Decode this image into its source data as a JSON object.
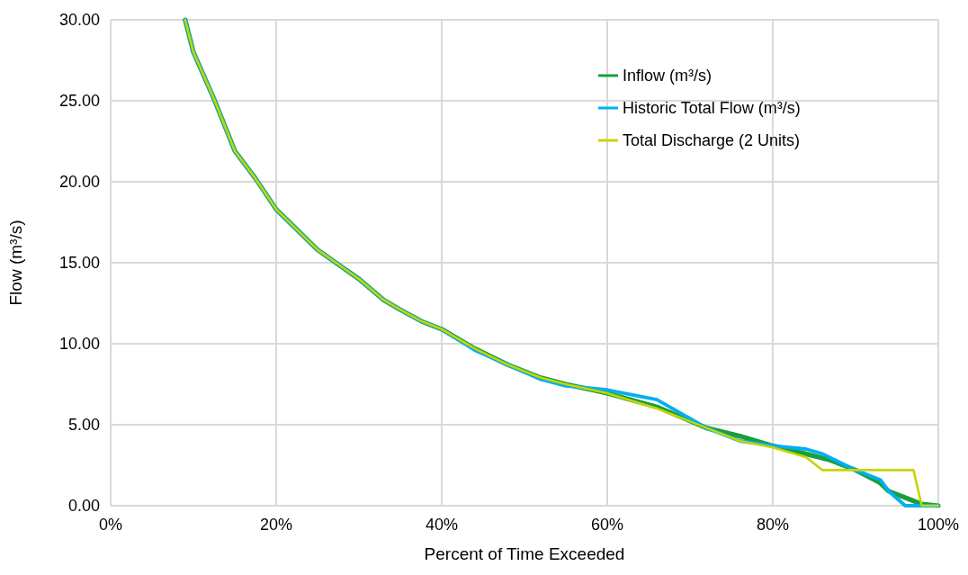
{
  "chart_data": {
    "type": "line",
    "xlabel": "Percent of Time Exceeded",
    "ylabel": "Flow (m³/s)",
    "xlim": [
      0,
      100
    ],
    "xticks": [
      {
        "value": 0,
        "label": "0%"
      },
      {
        "value": 20,
        "label": "20%"
      },
      {
        "value": 40,
        "label": "40%"
      },
      {
        "value": 60,
        "label": "60%"
      },
      {
        "value": 80,
        "label": "80%"
      },
      {
        "value": 100,
        "label": "100%"
      }
    ],
    "ylim": [
      0,
      30
    ],
    "yticks": [
      {
        "value": 0,
        "label": "0.00"
      },
      {
        "value": 5,
        "label": "5.00"
      },
      {
        "value": 10,
        "label": "10.00"
      },
      {
        "value": 15,
        "label": "15.00"
      },
      {
        "value": 20,
        "label": "20.00"
      },
      {
        "value": 25,
        "label": "25.00"
      },
      {
        "value": 30,
        "label": "30.00"
      }
    ],
    "grid": true,
    "legend": "top right",
    "marker": "none",
    "line_style": "solid",
    "series": [
      {
        "name": "Inflow (m³/s)",
        "color": "#1a9e3a",
        "x": [
          9,
          10,
          12.5,
          15,
          17.5,
          20,
          22,
          25,
          27.5,
          30,
          33,
          35,
          37.5,
          40,
          44,
          48,
          52,
          55,
          60,
          66,
          72,
          76,
          80,
          84,
          87,
          90,
          93,
          94,
          96,
          98,
          100
        ],
        "values": [
          30,
          28,
          25.1,
          21.9,
          20.2,
          18.3,
          17.3,
          15.8,
          14.9,
          14.0,
          12.7,
          12.1,
          11.4,
          10.9,
          9.7,
          8.7,
          7.9,
          7.5,
          6.95,
          6.1,
          4.8,
          4.3,
          3.7,
          3.2,
          2.8,
          2.2,
          1.4,
          0.9,
          0.5,
          0.1,
          0
        ]
      },
      {
        "name": "Historic Total Flow (m³/s)",
        "color": "#00b0f0",
        "x": [
          9,
          10,
          12.5,
          15,
          17.5,
          20,
          22,
          25,
          27.5,
          30,
          33,
          35,
          37.5,
          40,
          44,
          48,
          52,
          55,
          60,
          66,
          72,
          76,
          80,
          84,
          86,
          90,
          93,
          94,
          96,
          100
        ],
        "values": [
          30,
          28,
          25.1,
          21.9,
          20.2,
          18.3,
          17.3,
          15.8,
          14.9,
          14.0,
          12.7,
          12.1,
          11.4,
          10.9,
          9.6,
          8.7,
          7.8,
          7.4,
          7.15,
          6.55,
          4.8,
          4.0,
          3.7,
          3.5,
          3.2,
          2.2,
          1.6,
          0.9,
          0,
          0
        ]
      },
      {
        "name": "Total Discharge (2 Units)",
        "color": "#c8d400",
        "x": [
          9,
          10,
          12.5,
          15,
          17.5,
          20,
          22,
          25,
          27.5,
          30,
          33,
          35,
          37.5,
          40,
          44,
          48,
          52,
          55,
          60,
          66,
          72,
          76,
          80,
          84,
          86,
          97,
          98,
          100
        ],
        "values": [
          30,
          28,
          25.1,
          21.9,
          20.2,
          18.3,
          17.3,
          15.8,
          14.9,
          14.0,
          12.7,
          12.1,
          11.4,
          10.9,
          9.7,
          8.7,
          7.9,
          7.5,
          6.95,
          6.0,
          4.8,
          4.0,
          3.6,
          3.0,
          2.2,
          2.2,
          0,
          0
        ]
      }
    ]
  }
}
